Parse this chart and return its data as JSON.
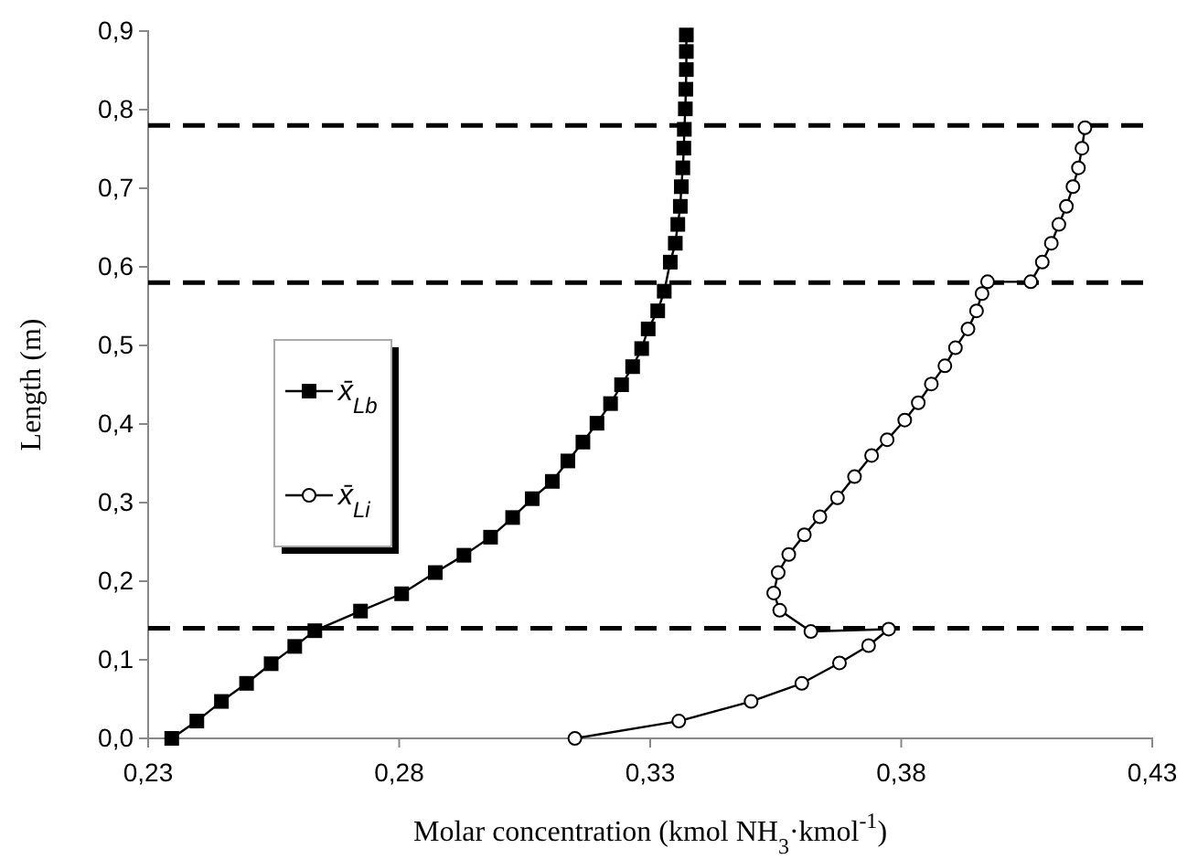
{
  "chart_data": {
    "type": "line",
    "xlabel": "Molar concentration (kmol NH$_{3}$·kmol$^{-1}$)",
    "ylabel": "Length (m)",
    "xlim": [
      0.23,
      0.43
    ],
    "xticks": [
      {
        "value": 0.23,
        "label": "0,23"
      },
      {
        "value": 0.28,
        "label": "0,28"
      },
      {
        "value": 0.33,
        "label": "0,33"
      },
      {
        "value": 0.38,
        "label": "0,38"
      },
      {
        "value": 0.43,
        "label": "0,43"
      }
    ],
    "ylim": [
      0,
      0.9
    ],
    "yticks": [
      {
        "value": 0,
        "label": "0,0"
      },
      {
        "value": 0.1,
        "label": "0,1"
      },
      {
        "value": 0.2,
        "label": "0,2"
      },
      {
        "value": 0.3,
        "label": "0,3"
      },
      {
        "value": 0.4,
        "label": "0,4"
      },
      {
        "value": 0.5,
        "label": "0,5"
      },
      {
        "value": 0.6,
        "label": "0,6"
      },
      {
        "value": 0.7,
        "label": "0,7"
      },
      {
        "value": 0.8,
        "label": "0,8"
      },
      {
        "value": 0.9,
        "label": "0,9"
      }
    ],
    "grid": false,
    "legend": "left",
    "line_style": "solid",
    "series": [
      {
        "name": "x̄$_{Lb}$",
        "color": "#000000",
        "marker": "square",
        "x": [
          0.2347,
          0.2397,
          0.2446,
          0.2496,
          0.2545,
          0.2592,
          0.2632,
          0.2723,
          0.2805,
          0.2872,
          0.2929,
          0.2982,
          0.3026,
          0.3065,
          0.3105,
          0.3136,
          0.3166,
          0.3194,
          0.3221,
          0.3243,
          0.3265,
          0.3283,
          0.3296,
          0.3315,
          0.3328,
          0.334,
          0.335,
          0.3355,
          0.336,
          0.3362,
          0.3365,
          0.3367,
          0.3368,
          0.337,
          0.3371,
          0.3372,
          0.3372,
          0.3372
        ],
        "values": [
          0,
          0.022,
          0.047,
          0.07,
          0.095,
          0.117,
          0.137,
          0.162,
          0.184,
          0.211,
          0.233,
          0.256,
          0.281,
          0.305,
          0.327,
          0.353,
          0.377,
          0.401,
          0.426,
          0.45,
          0.473,
          0.496,
          0.521,
          0.544,
          0.569,
          0.606,
          0.63,
          0.654,
          0.677,
          0.702,
          0.726,
          0.751,
          0.775,
          0.801,
          0.826,
          0.851,
          0.874,
          0.895
        ]
      },
      {
        "name": "x̄$_{Li}$",
        "color": "#000000",
        "marker": "circle",
        "x": [
          0.315,
          0.3357,
          0.3501,
          0.3602,
          0.3677,
          0.3735,
          0.3775,
          0.362,
          0.3558,
          0.3546,
          0.3555,
          0.3576,
          0.3607,
          0.3638,
          0.3673,
          0.3707,
          0.3741,
          0.3772,
          0.3807,
          0.3834,
          0.386,
          0.3887,
          0.3908,
          0.3933,
          0.395,
          0.3961,
          0.3972,
          0.4058,
          0.4081,
          0.4099,
          0.4114,
          0.4129,
          0.4142,
          0.4153,
          0.416,
          0.4166
        ],
        "values": [
          0,
          0.022,
          0.047,
          0.07,
          0.096,
          0.118,
          0.139,
          0.136,
          0.163,
          0.185,
          0.211,
          0.234,
          0.259,
          0.282,
          0.306,
          0.333,
          0.36,
          0.38,
          0.405,
          0.427,
          0.451,
          0.474,
          0.497,
          0.521,
          0.544,
          0.566,
          0.581,
          0.581,
          0.606,
          0.63,
          0.654,
          0.677,
          0.702,
          0.726,
          0.751,
          0.777
        ]
      }
    ],
    "ref_lines": [
      {
        "axis": "y",
        "value": 0.14,
        "label": null,
        "color": "#000000",
        "line_style": "dashed"
      },
      {
        "axis": "y",
        "value": 0.58,
        "label": null,
        "color": "#000000",
        "line_style": "dashed"
      },
      {
        "axis": "y",
        "value": 0.78,
        "label": null,
        "color": "#000000",
        "line_style": "dashed"
      }
    ]
  }
}
